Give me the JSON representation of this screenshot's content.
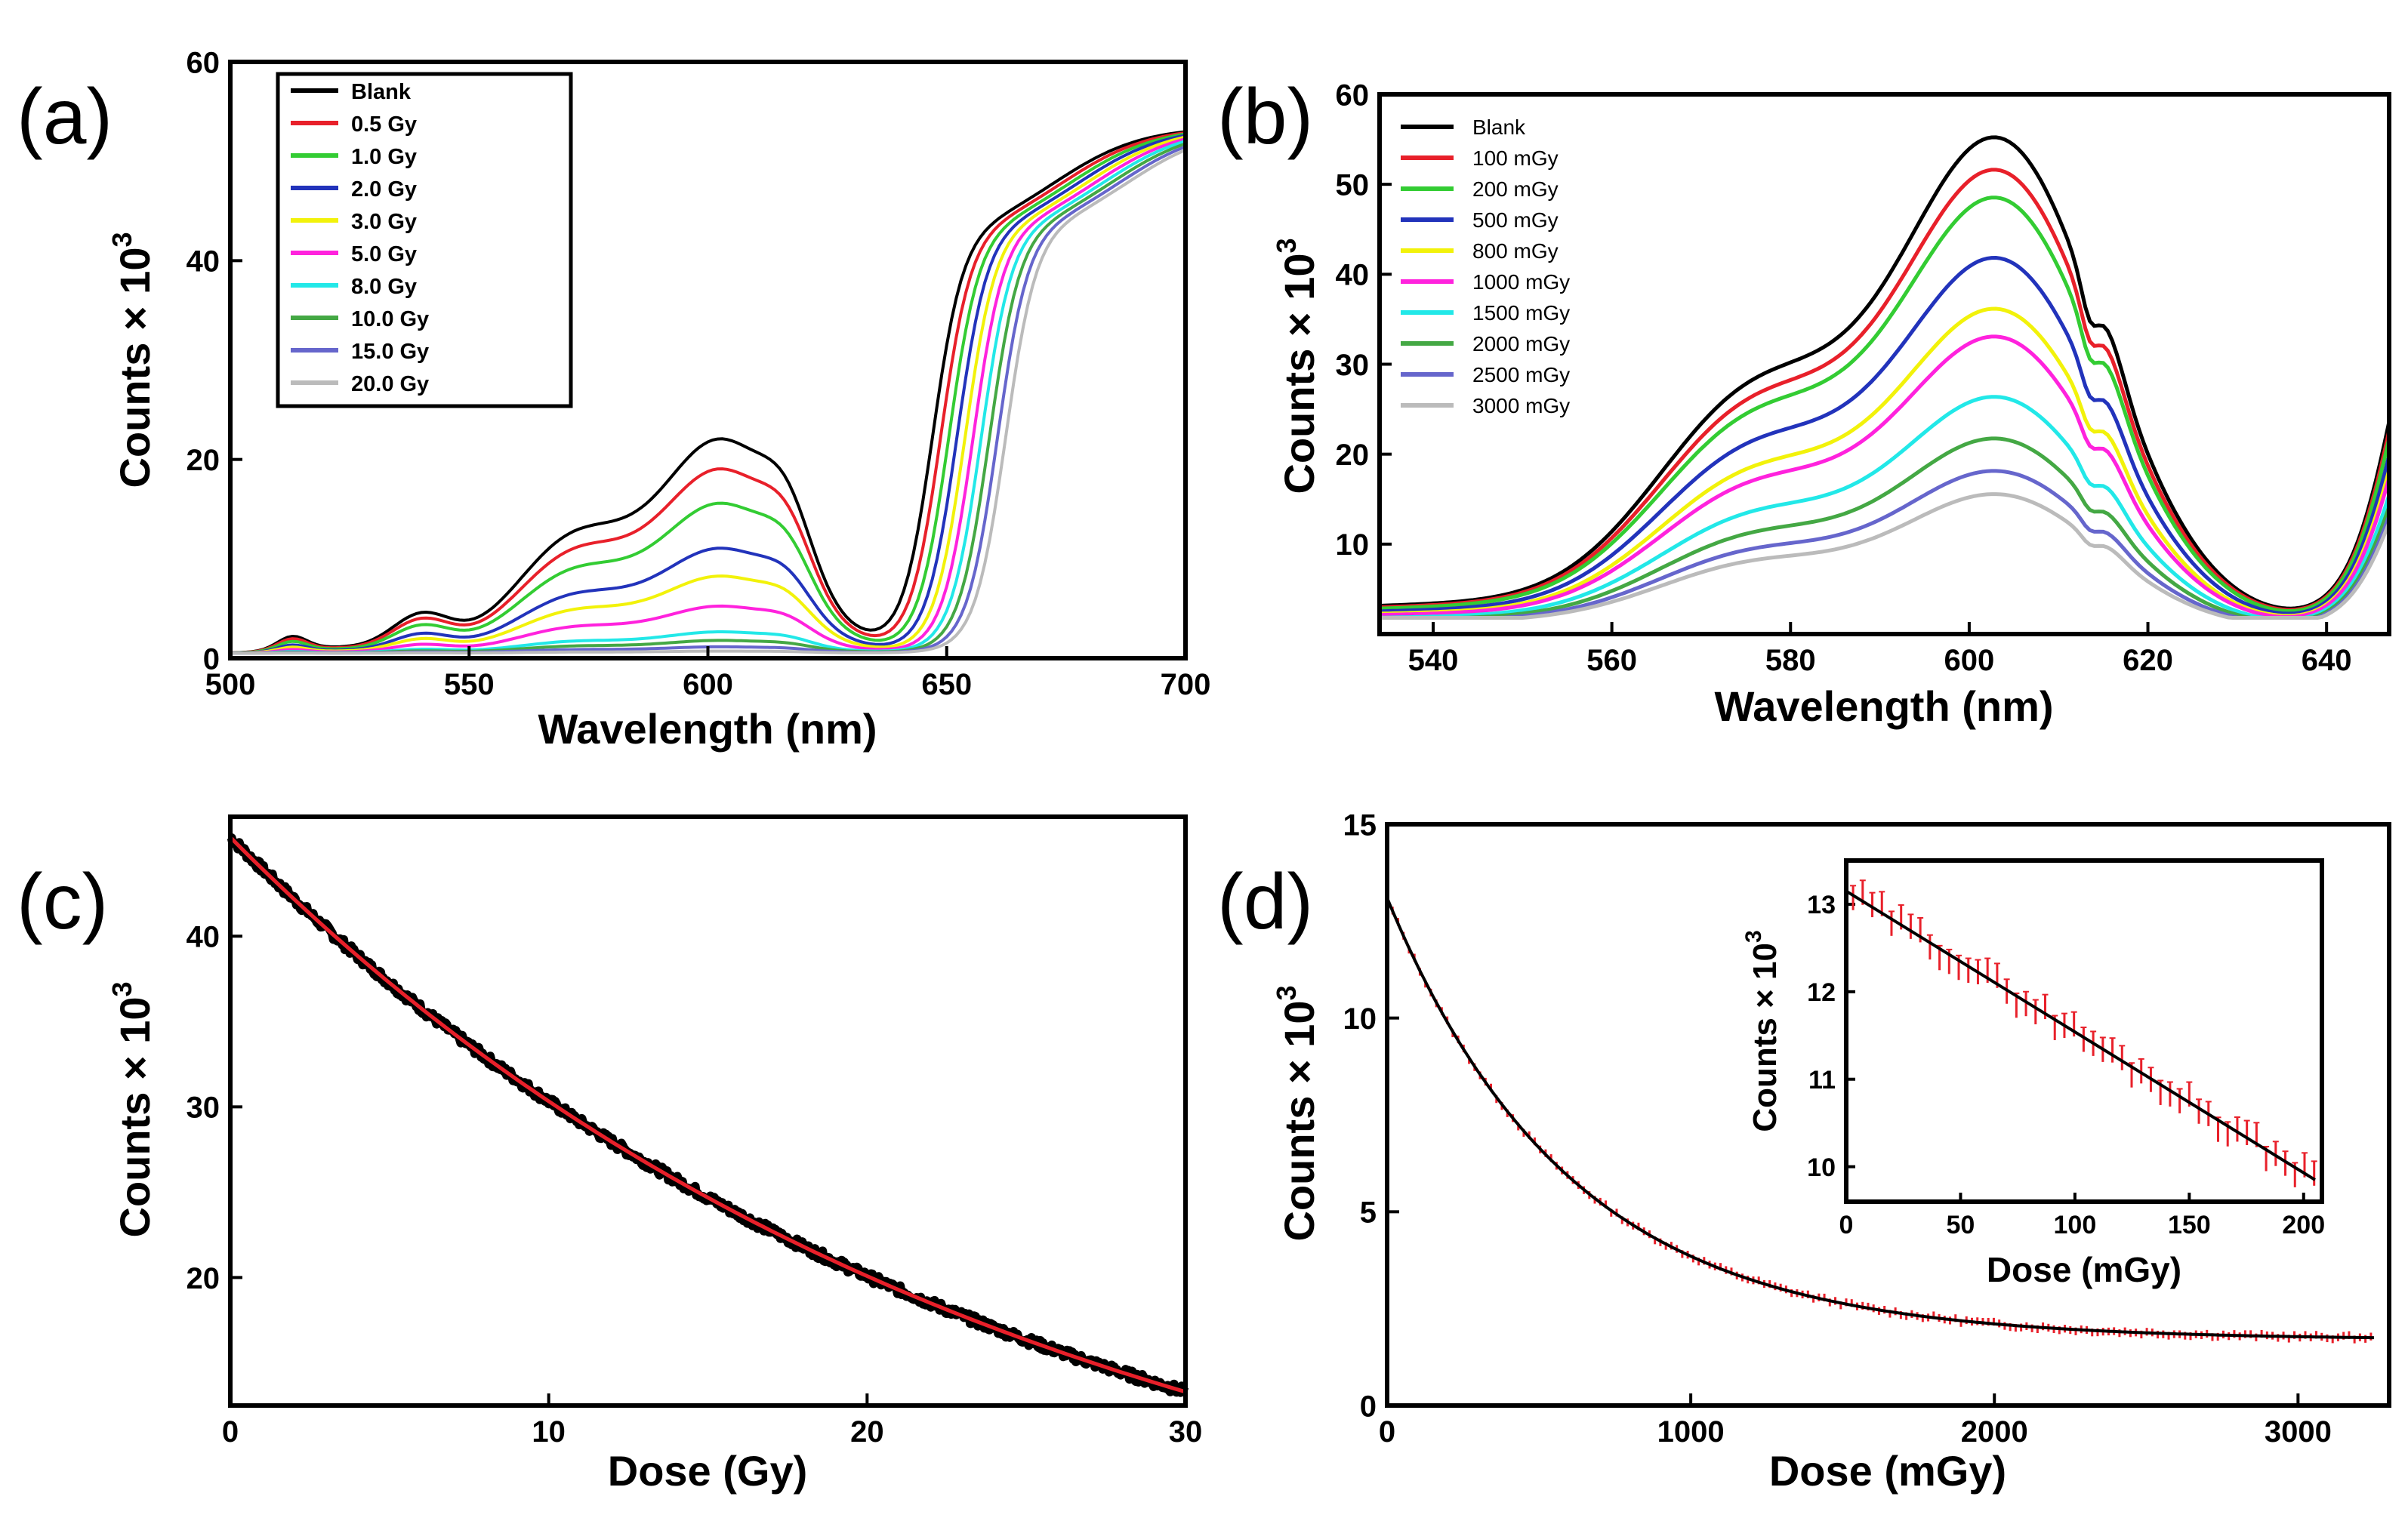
{
  "figure": {
    "panel_labels": [
      "(a)",
      "(b)",
      "(c)",
      "(d)"
    ]
  },
  "chart_data": [
    {
      "id": "a",
      "type": "line",
      "xlabel": "Wavelength (nm)",
      "ylabel": "Counts × 10",
      "ylabel_exp": "3",
      "xlim": [
        500,
        700
      ],
      "ylim": [
        0,
        60
      ],
      "xticks": [
        500,
        550,
        600,
        650,
        700
      ],
      "yticks": [
        0,
        20,
        40,
        60
      ],
      "legend": "top-left",
      "series": [
        {
          "name": "Blank",
          "color": "#000000",
          "scale": 1.0,
          "shift": 0
        },
        {
          "name": "0.5 Gy",
          "color": "#e8202a",
          "scale": 0.86,
          "shift": 1
        },
        {
          "name": "1.0 Gy",
          "color": "#33cc33",
          "scale": 0.7,
          "shift": 2
        },
        {
          "name": "2.0 Gy",
          "color": "#2233bb",
          "scale": 0.49,
          "shift": 3
        },
        {
          "name": "3.0 Gy",
          "color": "#f2f20a",
          "scale": 0.36,
          "shift": 4
        },
        {
          "name": "5.0 Gy",
          "color": "#ff22dd",
          "scale": 0.22,
          "shift": 5
        },
        {
          "name": "8.0 Gy",
          "color": "#22e8e8",
          "scale": 0.1,
          "shift": 6
        },
        {
          "name": "10.0 Gy",
          "color": "#44a844",
          "scale": 0.06,
          "shift": 7
        },
        {
          "name": "15.0 Gy",
          "color": "#6666cc",
          "scale": 0.03,
          "shift": 8
        },
        {
          "name": "20.0 Gy",
          "color": "#bbbbbb",
          "scale": 0.01,
          "shift": 9
        }
      ]
    },
    {
      "id": "b",
      "type": "line",
      "xlabel": "Wavelength (nm)",
      "ylabel": "Counts × 10",
      "ylabel_exp": "3",
      "xlim": [
        534,
        647
      ],
      "ylim": [
        0,
        60
      ],
      "xticks": [
        540,
        560,
        580,
        600,
        620,
        640
      ],
      "yticks": [
        10,
        20,
        30,
        40,
        50,
        60
      ],
      "legend": "top-left",
      "series": [
        {
          "name": "Blank",
          "color": "#000000",
          "peak": 53.0
        },
        {
          "name": "100 mGy",
          "color": "#e8202a",
          "peak": 49.5
        },
        {
          "name": "200 mGy",
          "color": "#33cc33",
          "peak": 46.5
        },
        {
          "name": "500 mGy",
          "color": "#2233bb",
          "peak": 40.0
        },
        {
          "name": "800 mGy",
          "color": "#f2f20a",
          "peak": 34.5
        },
        {
          "name": "1000 mGy",
          "color": "#ff22dd",
          "peak": 31.5
        },
        {
          "name": "1500 mGy",
          "color": "#22e8e8",
          "peak": 25.0
        },
        {
          "name": "2000 mGy",
          "color": "#44a844",
          "peak": 20.5
        },
        {
          "name": "2500 mGy",
          "color": "#6666cc",
          "peak": 17.0
        },
        {
          "name": "3000 mGy",
          "color": "#bbbbbb",
          "peak": 14.5
        }
      ]
    },
    {
      "id": "c",
      "type": "line",
      "xlabel": "Dose (Gy)",
      "ylabel": "Counts × 10",
      "ylabel_exp": "3",
      "xlim": [
        0,
        30
      ],
      "ylim": [
        12.5,
        47
      ],
      "xticks": [
        0,
        10,
        20,
        30
      ],
      "yticks": [
        20,
        30,
        40
      ],
      "series": [
        {
          "name": "data",
          "color": "#000000",
          "x0": 0,
          "x1": 30,
          "y0": 45.8,
          "y1": 13.3
        }
      ],
      "fit": {
        "name": "fit",
        "color": "#e8202a"
      }
    },
    {
      "id": "d",
      "type": "scatter",
      "xlabel": "Dose (mGy)",
      "ylabel": "Counts × 10",
      "ylabel_exp": "3",
      "xlim": [
        0,
        3300
      ],
      "ylim": [
        0,
        15
      ],
      "xticks": [
        0,
        1000,
        2000,
        3000
      ],
      "yticks": [
        0,
        5,
        10,
        15
      ],
      "fit": {
        "a": 11.4,
        "tau": 600,
        "c": 1.7,
        "color": "#000000"
      },
      "points_color": "#e8202a",
      "inset": {
        "xlabel": "Dose (mGy)",
        "ylabel": "Counts × 10",
        "ylabel_exp": "3",
        "xlim": [
          0,
          208
        ],
        "ylim": [
          9.6,
          13.5
        ],
        "xticks": [
          0,
          50,
          100,
          150,
          200
        ],
        "yticks": [
          10,
          11,
          12,
          13
        ],
        "fit_start": 13.15,
        "fit_end": 9.85
      }
    }
  ]
}
